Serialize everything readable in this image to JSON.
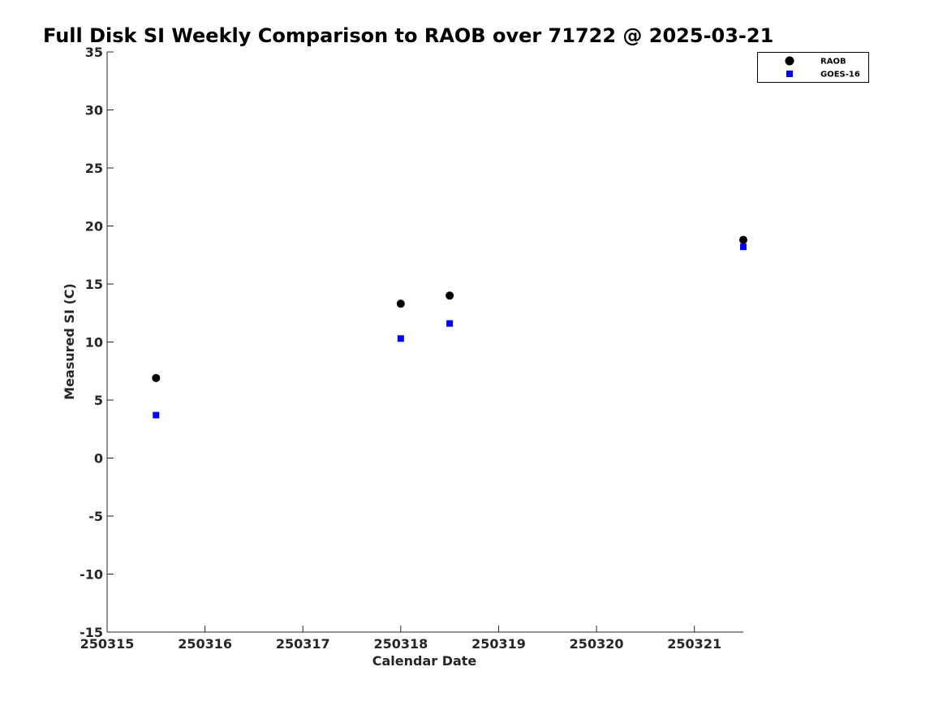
{
  "chart_data": {
    "type": "scatter",
    "title": "Full Disk SI Weekly Comparison to RAOB over 71722 @ 2025-03-21",
    "xlabel": "Calendar Date",
    "ylabel": "Measured SI (C)",
    "xlim": [
      250315,
      250321.5
    ],
    "ylim": [
      -15,
      35
    ],
    "x_ticks": [
      "250315",
      "250316",
      "250317",
      "250318",
      "250319",
      "250320",
      "250321"
    ],
    "y_ticks": [
      "-15",
      "-10",
      "-5",
      "0",
      "5",
      "10",
      "15",
      "20",
      "25",
      "30",
      "35"
    ],
    "grid": false,
    "legend_position": "top-right",
    "series": [
      {
        "name": "RAOB",
        "marker": "circle",
        "color": "#000000",
        "points": [
          {
            "x": 250315.5,
            "y": 6.9
          },
          {
            "x": 250318.0,
            "y": 13.3
          },
          {
            "x": 250318.5,
            "y": 14.0
          },
          {
            "x": 250321.5,
            "y": 18.8
          }
        ]
      },
      {
        "name": "GOES-16",
        "marker": "square",
        "color": "#0000ff",
        "points": [
          {
            "x": 250315.5,
            "y": 3.7
          },
          {
            "x": 250318.0,
            "y": 10.3
          },
          {
            "x": 250318.5,
            "y": 11.6
          },
          {
            "x": 250321.5,
            "y": 18.2
          }
        ]
      }
    ]
  }
}
